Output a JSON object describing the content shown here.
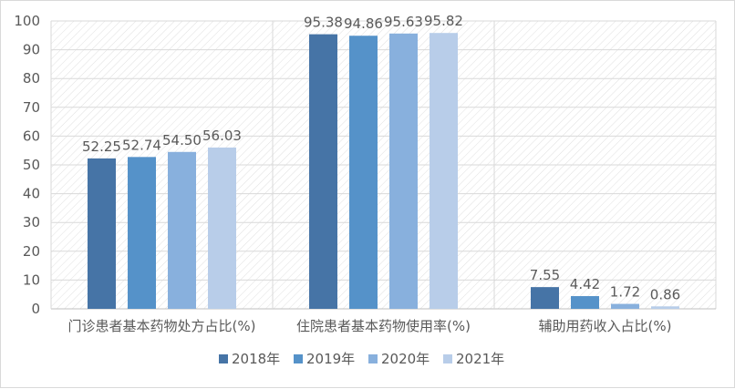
{
  "chart_data": {
    "type": "bar",
    "categories": [
      "门诊患者基本药物处方占比(%)",
      "住院患者基本药物使用率(%)",
      "辅助用药收入占比(%)"
    ],
    "series": [
      {
        "name": "2018年",
        "color": "#4674a6",
        "values": [
          52.25,
          95.38,
          7.55
        ],
        "labels": [
          "52.25",
          "95.38",
          "7.55"
        ]
      },
      {
        "name": "2019年",
        "color": "#5592c9",
        "values": [
          52.74,
          94.86,
          4.42
        ],
        "labels": [
          "52.74",
          "94.86",
          "4.42"
        ]
      },
      {
        "name": "2020年",
        "color": "#88b0dd",
        "values": [
          54.5,
          95.63,
          1.72
        ],
        "labels": [
          "54.50",
          "95.63",
          "1.72"
        ]
      },
      {
        "name": "2021年",
        "color": "#b8cde9",
        "values": [
          56.03,
          95.82,
          0.86
        ],
        "labels": [
          "56.03",
          "95.82",
          "0.86"
        ]
      }
    ],
    "ylim": [
      0,
      100
    ],
    "yticks": [
      "0",
      "10",
      "20",
      "30",
      "40",
      "50",
      "60",
      "70",
      "80",
      "90",
      "100"
    ],
    "grid": true,
    "legend": "bottom"
  }
}
